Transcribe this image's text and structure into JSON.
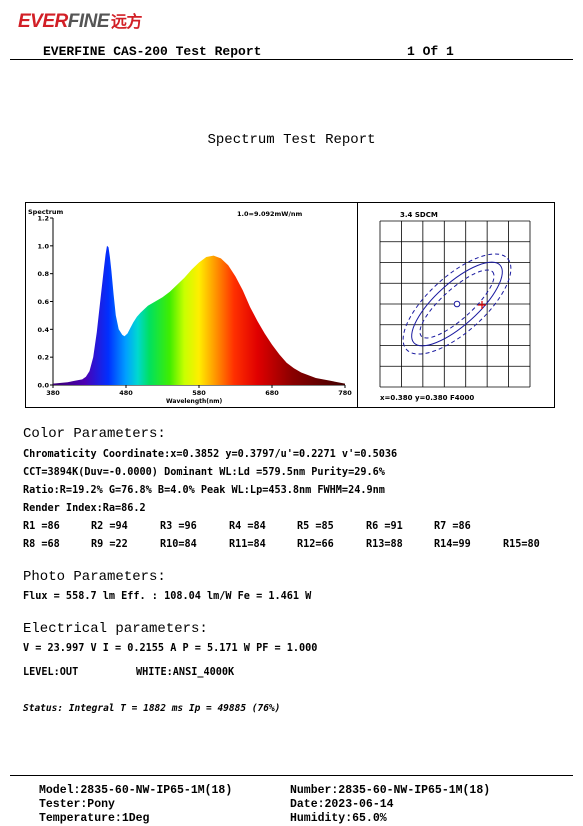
{
  "brand": {
    "name_red": "EVER",
    "name_dark": "FINE",
    "name_cn": "远方"
  },
  "header": {
    "title": "EVERFINE CAS-200 Test Report",
    "page": "1 Of 1"
  },
  "report_title": "Spectrum Test Report",
  "spectrum": {
    "ylabel": "Spectrum",
    "xlabel": "Wavelength(nm)",
    "peak_note": "1.0=9.092mW/nm",
    "y_ticks": [
      "1.2",
      "1.0",
      "0.8",
      "0.6",
      "0.4",
      "0.2",
      "0.0"
    ],
    "x_ticks": [
      "380",
      "480",
      "580",
      "680",
      "780"
    ]
  },
  "chart_data": {
    "type": "area",
    "title": "",
    "xlabel": "Wavelength(nm)",
    "ylabel": "Spectrum",
    "xlim": [
      380,
      780
    ],
    "ylim": [
      0,
      1.2
    ],
    "x": [
      380,
      400,
      410,
      420,
      425,
      430,
      435,
      440,
      445,
      450,
      452,
      454,
      456,
      458,
      460,
      463,
      466,
      470,
      475,
      478,
      482,
      486,
      490,
      495,
      500,
      510,
      520,
      530,
      540,
      550,
      560,
      570,
      580,
      590,
      600,
      610,
      620,
      630,
      640,
      650,
      660,
      670,
      680,
      690,
      700,
      710,
      720,
      730,
      740,
      750,
      760,
      770,
      780
    ],
    "values": [
      0.01,
      0.02,
      0.03,
      0.04,
      0.06,
      0.1,
      0.2,
      0.38,
      0.62,
      0.85,
      0.94,
      1.0,
      0.99,
      0.92,
      0.82,
      0.65,
      0.5,
      0.4,
      0.36,
      0.35,
      0.37,
      0.41,
      0.45,
      0.49,
      0.52,
      0.57,
      0.6,
      0.63,
      0.67,
      0.72,
      0.77,
      0.83,
      0.88,
      0.92,
      0.93,
      0.91,
      0.86,
      0.78,
      0.68,
      0.56,
      0.46,
      0.37,
      0.29,
      0.22,
      0.16,
      0.12,
      0.09,
      0.07,
      0.05,
      0.04,
      0.03,
      0.02,
      0.01
    ]
  },
  "chroma_plot": {
    "label": "3.4 SDCM",
    "readout": "x=0.380 y=0.380 F4000"
  },
  "color_params": {
    "heading": "Color Parameters:",
    "line1": "Chromaticity Coordinate:x=0.3852  y=0.3797/u'=0.2271 v'=0.5036",
    "line2": "CCT=3894K(Duv=-0.0000) Dominant WL:Ld =579.5nm Purity=29.6%",
    "line3": "Ratio:R=19.2% G=76.8% B=4.0%  Peak WL:Lp=453.8nm  FWHM=24.9nm",
    "line4": "Render Index:Ra=86.2",
    "row1": [
      "R1 =86",
      "R2 =94",
      "R3 =96",
      "R4 =84",
      "R5 =85",
      "R6 =91",
      "R7 =86"
    ],
    "row2": [
      "R8 =68",
      "R9 =22",
      "R10=84",
      "R11=84",
      "R12=66",
      "R13=88",
      "R14=99",
      "R15=80"
    ]
  },
  "photo_params": {
    "heading": "Photo Parameters:",
    "line1": "Flux  = 558.7 lm   Eff. : 108.04 lm/W  Fe  = 1.461 W"
  },
  "electrical_params": {
    "heading": "Electrical parameters:",
    "line1": "V = 23.997 V     I = 0.2155 A    P = 5.171 W PF = 1.000",
    "level": "LEVEL:OUT",
    "white": "WHITE:ANSI_4000K"
  },
  "status": "Status:  Integral T = 1882 ms  Ip = 49885 (76%)",
  "footer": {
    "model": "Model:2835-60-NW-IP65-1M(18)",
    "number": "Number:2835-60-NW-IP65-1M(18)",
    "tester": "Tester:Pony",
    "date": "Date:2023-06-14",
    "temperature": "Temperature:1Deg",
    "humidity": "Humidity:65.0%"
  }
}
